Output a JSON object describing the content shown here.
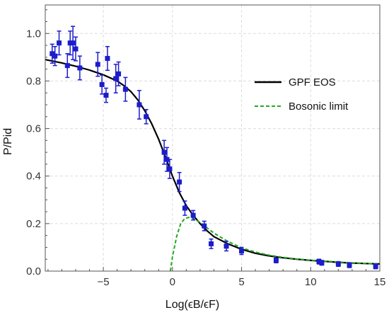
{
  "chart_data": {
    "type": "scatter",
    "x_label": "Log(ϵB/ϵF)",
    "y_label": "P/Pid",
    "xlim": [
      -9.2,
      15
    ],
    "ylim": [
      0,
      1.12
    ],
    "x_ticks": [
      -5,
      0,
      5,
      10,
      15
    ],
    "x_tick_labels": [
      "−5",
      "0",
      "5",
      "10",
      "15"
    ],
    "y_ticks": [
      0.0,
      0.2,
      0.4,
      0.6,
      0.8,
      1.0
    ],
    "y_tick_labels": [
      "0.0",
      "0.2",
      "0.4",
      "0.6",
      "0.8",
      "1.0"
    ],
    "grid": true,
    "legend_position": "right",
    "series": [
      {
        "name": "GPF EOS",
        "kind": "line",
        "color": "#000000",
        "x": [
          -9.2,
          -8,
          -7,
          -6,
          -5,
          -4,
          -3.5,
          -3,
          -2.5,
          -2,
          -1.5,
          -1,
          -0.5,
          0,
          0.5,
          1,
          1.5,
          2,
          2.5,
          3,
          4,
          5,
          6,
          7,
          8,
          9,
          10,
          11,
          12,
          13,
          14,
          15
        ],
        "y": [
          0.89,
          0.876,
          0.862,
          0.846,
          0.826,
          0.8,
          0.78,
          0.755,
          0.72,
          0.675,
          0.62,
          0.555,
          0.48,
          0.4,
          0.33,
          0.275,
          0.235,
          0.2,
          0.17,
          0.145,
          0.115,
          0.092,
          0.075,
          0.064,
          0.056,
          0.05,
          0.045,
          0.041,
          0.037,
          0.034,
          0.032,
          0.03
        ]
      },
      {
        "name": "Bosonic limit",
        "kind": "line",
        "style": "dashed",
        "color": "#22aa22",
        "x": [
          -0.15,
          0,
          0.3,
          0.6,
          0.9,
          1.2,
          1.5,
          2,
          2.5,
          3,
          4,
          5,
          6,
          7,
          8,
          9,
          10,
          11,
          12,
          13,
          14,
          15
        ],
        "y": [
          0.0,
          0.06,
          0.145,
          0.2,
          0.222,
          0.226,
          0.222,
          0.205,
          0.182,
          0.16,
          0.125,
          0.098,
          0.08,
          0.067,
          0.058,
          0.051,
          0.046,
          0.042,
          0.038,
          0.035,
          0.032,
          0.03
        ]
      },
      {
        "kind": "points",
        "color": "#1c1ccc",
        "x": [
          -8.7,
          -8.5,
          -8.2,
          -7.6,
          -7.4,
          -7.2,
          -7.0,
          -6.7,
          -5.4,
          -5.1,
          -4.8,
          -4.7,
          -4.1,
          -3.9,
          -3.4,
          -2.4,
          -1.9,
          -0.6,
          -0.4,
          -0.2,
          0.5,
          0.9,
          1.5,
          2.3,
          2.8,
          3.9,
          5.0,
          7.5,
          10.6,
          10.8,
          12,
          12.8,
          14.7
        ],
        "y": [
          0.915,
          0.905,
          0.96,
          0.865,
          0.96,
          0.96,
          0.935,
          0.855,
          0.87,
          0.785,
          0.74,
          0.895,
          0.81,
          0.83,
          0.765,
          0.7,
          0.65,
          0.5,
          0.47,
          0.43,
          0.375,
          0.265,
          0.235,
          0.19,
          0.115,
          0.105,
          0.085,
          0.045,
          0.04,
          0.035,
          0.03,
          0.025,
          0.02
        ],
        "err": [
          0.04,
          0.04,
          0.05,
          0.05,
          0.05,
          0.07,
          0.05,
          0.05,
          0.05,
          0.04,
          0.03,
          0.05,
          0.06,
          0.05,
          0.05,
          0.06,
          0.03,
          0.05,
          0.05,
          0.04,
          0.04,
          0.03,
          0.02,
          0.02,
          0.02,
          0.02,
          0.015,
          0.01,
          0.01,
          0.01,
          0.01,
          0.01,
          0.01
        ]
      }
    ]
  }
}
